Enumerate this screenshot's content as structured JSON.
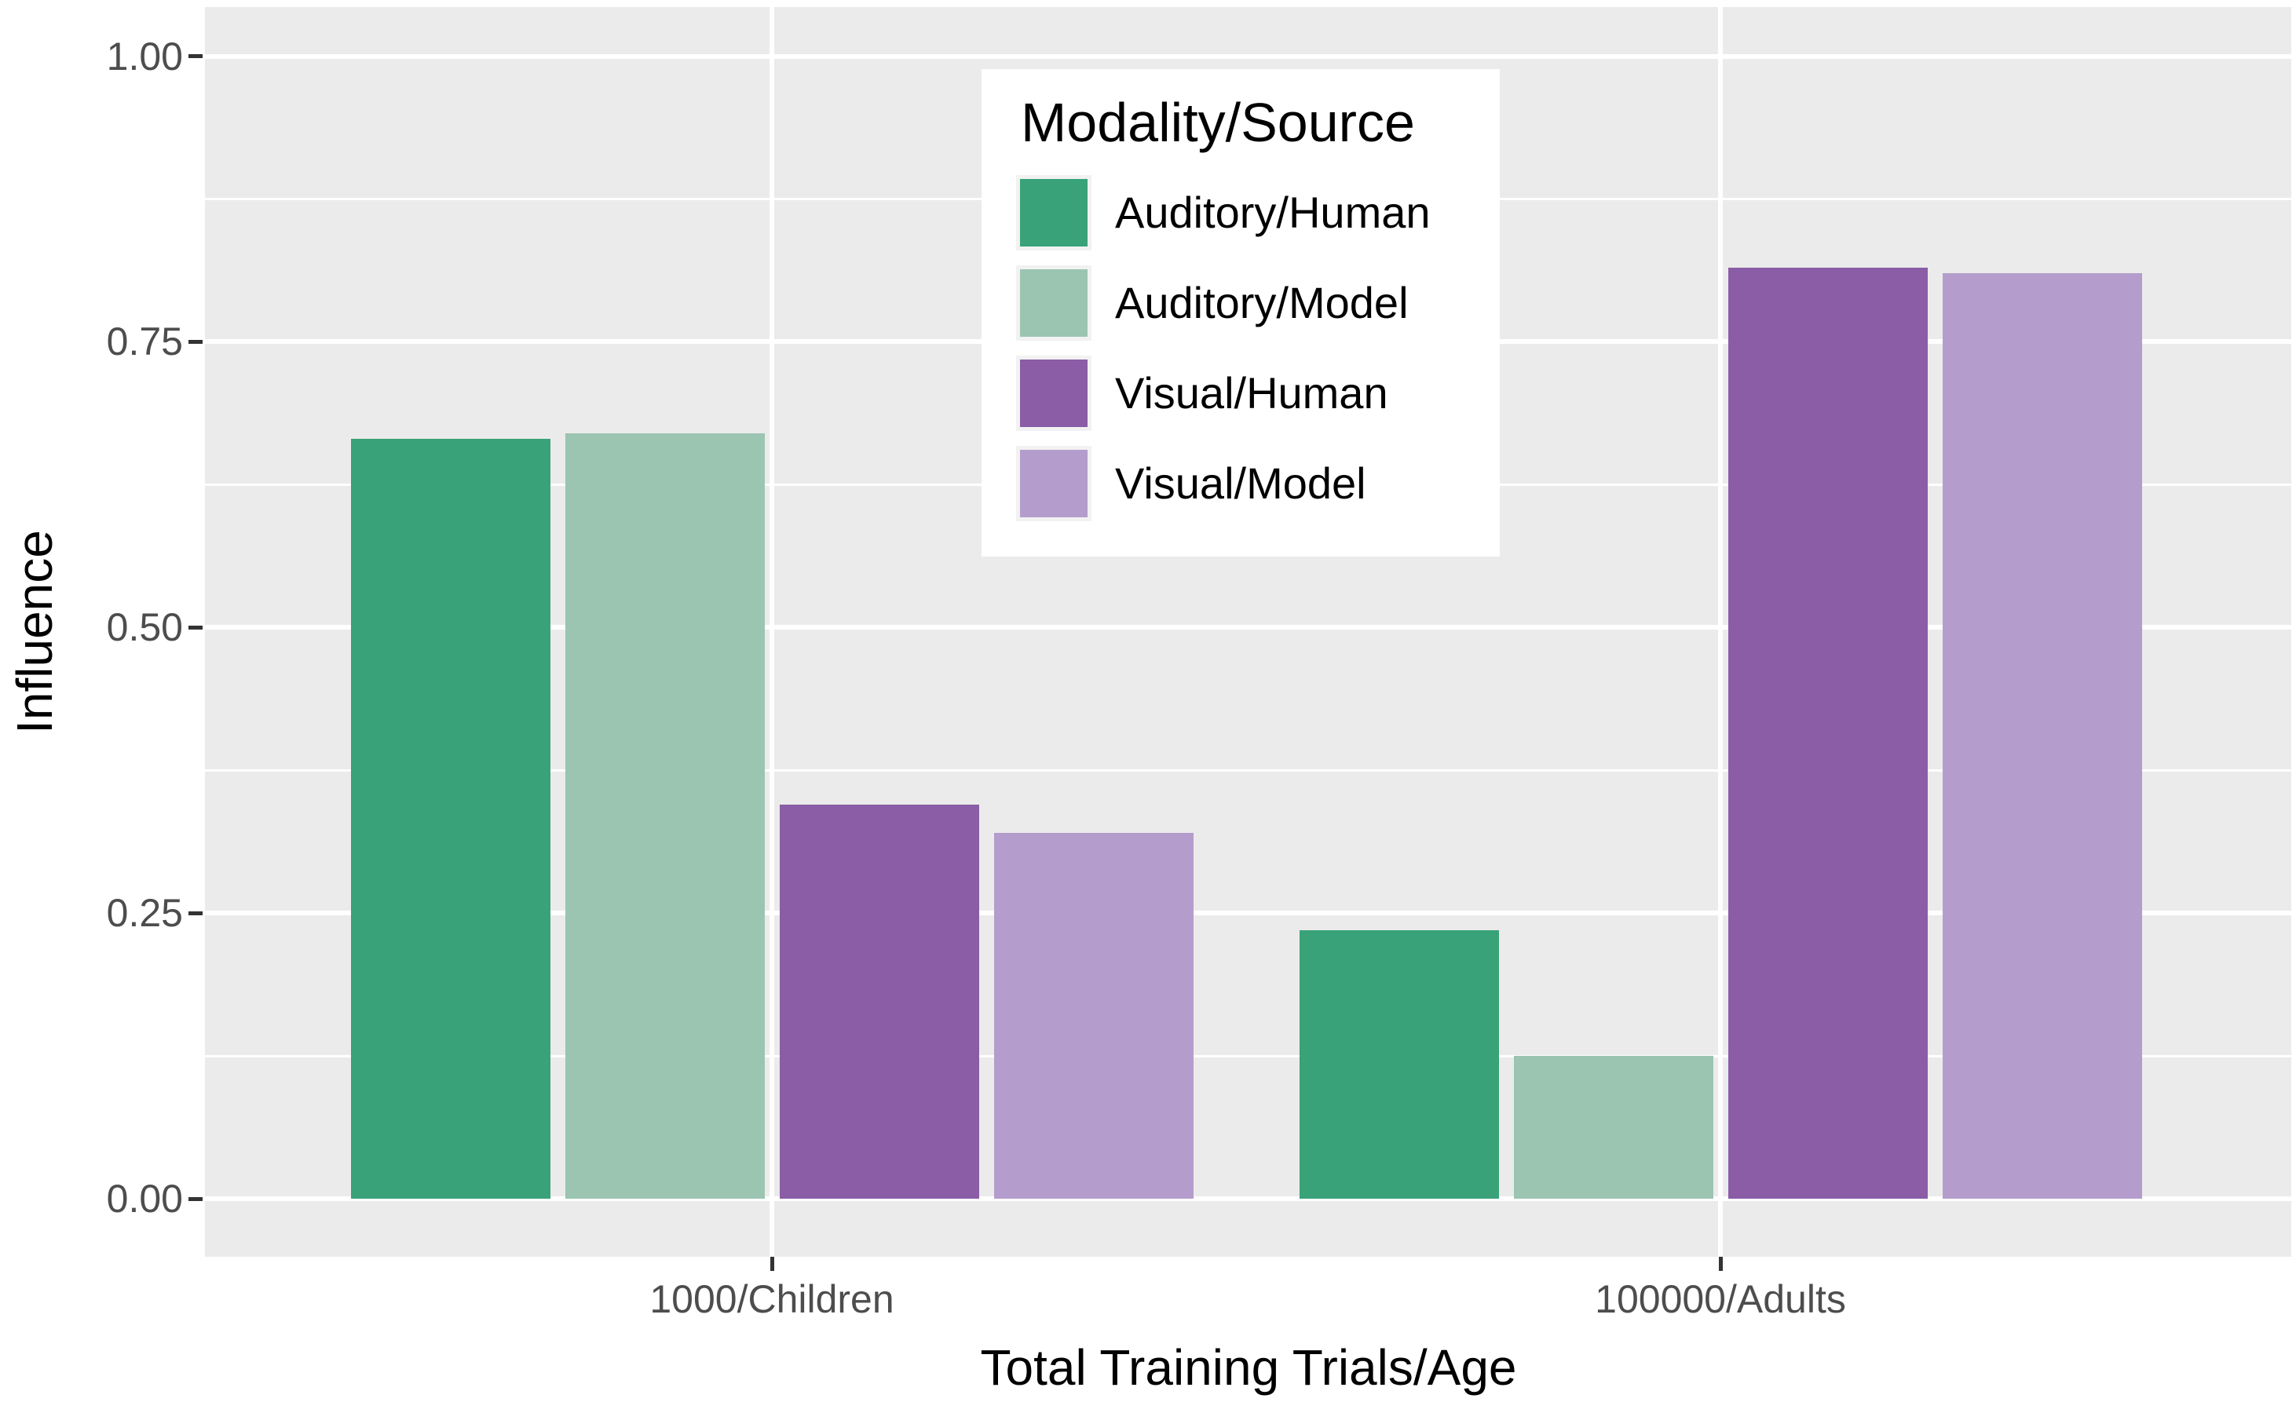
{
  "figure": {
    "background": "#FFFFFF",
    "panel_background": "#EBEBEB",
    "gridline_color": "#FFFFFF",
    "tick_label_color": "#4D4D4D",
    "tick_mark_color": "#333333",
    "axis_title_color": "#000000"
  },
  "axes": {
    "x_title": "Total Training Trials/Age",
    "y_title": "Influence",
    "x_tick_labels": [
      "1000/Children",
      "100000/Adults"
    ],
    "y_tick_labels": [
      "1.00",
      "0.75",
      "0.50",
      "0.25",
      "0.00"
    ],
    "y_tick_values": [
      1.0,
      0.75,
      0.5,
      0.25,
      0.0
    ]
  },
  "legend": {
    "title": "Modality/Source",
    "entries": [
      {
        "label": "Auditory/Human",
        "color": "#39A278"
      },
      {
        "label": "Auditory/Model",
        "color": "#9BC5B1"
      },
      {
        "label": "Visual/Human",
        "color": "#8A5DA6"
      },
      {
        "label": "Visual/Model",
        "color": "#B49DCC"
      }
    ]
  },
  "chart_data": {
    "type": "bar",
    "bar_grouping": "dodge",
    "title": "",
    "xlabel": "Total Training Trials/Age",
    "ylabel": "Influence",
    "categories": [
      "1000/Children",
      "100000/Adults"
    ],
    "series": [
      {
        "name": "Auditory/Human",
        "color": "#39A278",
        "values": [
          0.665,
          0.235
        ]
      },
      {
        "name": "Auditory/Model",
        "color": "#9BC5B1",
        "values": [
          0.67,
          0.125
        ]
      },
      {
        "name": "Visual/Human",
        "color": "#8A5DA6",
        "values": [
          0.345,
          0.815
        ]
      },
      {
        "name": "Visual/Model",
        "color": "#B49DCC",
        "values": [
          0.32,
          0.81
        ]
      }
    ],
    "ylim": [
      0,
      1.04
    ],
    "y_major_ticks": [
      0,
      0.25,
      0.5,
      0.75,
      1.0
    ],
    "y_minor_ticks": [
      0.125,
      0.375,
      0.625,
      0.875
    ],
    "grid": "major and minor white gridlines on gray panel",
    "legend_title": "Modality/Source",
    "legend_position": "inside-top-center"
  }
}
